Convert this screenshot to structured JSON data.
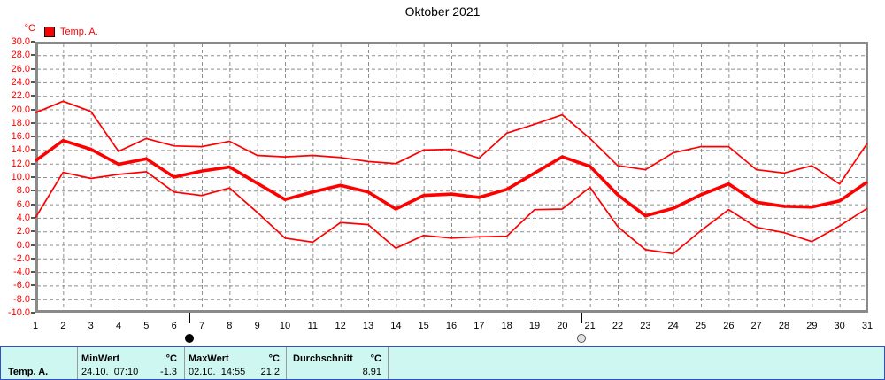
{
  "title": "Oktober 2021",
  "chart_data": {
    "type": "line",
    "title": "Oktober 2021",
    "ylabel": "°C",
    "xlabel": "",
    "ylim": [
      -10,
      30
    ],
    "y_tick_step": 2,
    "grid": true,
    "line_color": "#ff0000",
    "legend": {
      "label": "Temp. A.",
      "swatch_color": "#ff0000"
    },
    "x": [
      1,
      2,
      3,
      4,
      5,
      6,
      7,
      8,
      9,
      10,
      11,
      12,
      13,
      14,
      15,
      16,
      17,
      18,
      19,
      20,
      21,
      22,
      23,
      24,
      25,
      26,
      27,
      28,
      29,
      30,
      31
    ],
    "series": [
      {
        "name": "daily-max",
        "role": "max",
        "values": [
          19.5,
          21.2,
          19.7,
          13.8,
          15.7,
          14.6,
          14.5,
          15.3,
          13.2,
          13.0,
          13.2,
          12.9,
          12.3,
          12.0,
          14.0,
          14.1,
          12.8,
          16.5,
          17.8,
          19.2,
          15.7,
          11.7,
          11.1,
          13.6,
          14.5,
          14.5,
          11.1,
          10.6,
          11.7,
          9.0,
          15.0
        ]
      },
      {
        "name": "daily-mean",
        "role": "mean",
        "values": [
          12.4,
          15.4,
          14.1,
          11.9,
          12.7,
          10.0,
          10.9,
          11.5,
          9.1,
          6.7,
          7.8,
          8.8,
          7.8,
          5.3,
          7.3,
          7.5,
          7.0,
          8.2,
          10.6,
          13.0,
          11.6,
          7.4,
          4.3,
          5.4,
          7.4,
          9.0,
          6.3,
          5.7,
          5.6,
          6.5,
          9.3
        ]
      },
      {
        "name": "daily-min",
        "role": "min",
        "values": [
          4.0,
          10.7,
          9.8,
          10.4,
          10.8,
          7.8,
          7.3,
          8.4,
          4.8,
          1.0,
          0.4,
          3.3,
          3.0,
          -0.5,
          1.4,
          1.0,
          1.2,
          1.3,
          5.2,
          5.3,
          8.5,
          2.7,
          -0.7,
          -1.3,
          2.1,
          5.2,
          2.6,
          1.8,
          0.5,
          2.8,
          5.4
        ]
      }
    ],
    "moon_markers": [
      {
        "symbol": "new-moon",
        "day": 6.55
      },
      {
        "symbol": "full-moon",
        "day": 20.7
      }
    ]
  },
  "table": {
    "row_label": "Temp. A.",
    "columns": [
      {
        "header": "MinWert",
        "unit": "°C",
        "value": "24.10.  07:10",
        "number": "-1.3"
      },
      {
        "header": "MaxWert",
        "unit": "°C",
        "value": "02.10.  14:55",
        "number": "21.2"
      },
      {
        "header": "Durchschnitt",
        "unit": "°C",
        "value": "",
        "number": "8.91"
      }
    ]
  }
}
